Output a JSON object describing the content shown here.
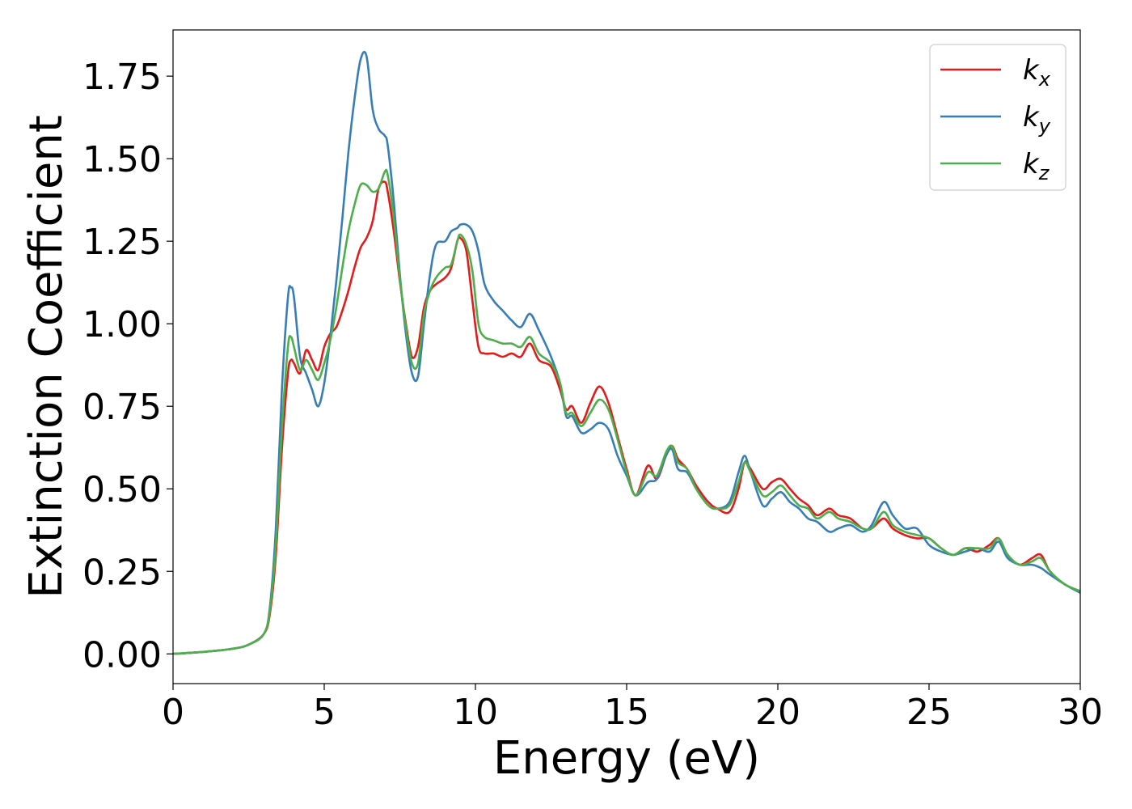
{
  "chart_data": {
    "type": "line",
    "xlabel": "Energy (eV)",
    "ylabel": "Extinction Coefficient",
    "xlim": [
      0,
      30
    ],
    "ylim": [
      -0.09,
      1.89
    ],
    "xticks": [
      0,
      5,
      10,
      15,
      20,
      25,
      30
    ],
    "yticks": [
      0.0,
      0.25,
      0.5,
      0.75,
      1.0,
      1.25,
      1.5,
      1.75
    ],
    "xtick_labels": [
      "0",
      "5",
      "10",
      "15",
      "20",
      "25",
      "30"
    ],
    "ytick_labels": [
      "0.00",
      "0.25",
      "0.50",
      "0.75",
      "1.00",
      "1.25",
      "1.50",
      "1.75"
    ],
    "grid": false,
    "legend_position": "top-right",
    "series": [
      {
        "name": "k",
        "subscript": "x",
        "color": "#e41a1c",
        "x": [
          0,
          1,
          2,
          2.5,
          3,
          3.2,
          3.4,
          3.6,
          3.8,
          3.9,
          4.0,
          4.2,
          4.4,
          4.6,
          4.8,
          5.0,
          5.2,
          5.4,
          5.6,
          5.8,
          6.0,
          6.2,
          6.4,
          6.6,
          6.8,
          7.0,
          7.1,
          7.3,
          7.5,
          7.7,
          7.9,
          8.1,
          8.3,
          8.5,
          8.7,
          9.0,
          9.2,
          9.4,
          9.5,
          9.7,
          9.9,
          10.1,
          10.3,
          10.6,
          10.9,
          11.2,
          11.5,
          11.8,
          12.1,
          12.5,
          12.8,
          13.0,
          13.2,
          13.5,
          13.8,
          14.1,
          14.4,
          14.7,
          15.0,
          15.3,
          15.7,
          16.0,
          16.3,
          16.5,
          16.7,
          17.0,
          17.3,
          17.7,
          18.0,
          18.4,
          18.7,
          18.9,
          19.1,
          19.5,
          19.8,
          20.1,
          20.4,
          20.7,
          21.0,
          21.3,
          21.7,
          22.0,
          22.4,
          22.8,
          23.1,
          23.5,
          23.8,
          24.2,
          24.6,
          25.0,
          25.4,
          25.8,
          26.2,
          26.6,
          27.0,
          27.3,
          27.6,
          28.0,
          28.4,
          28.7,
          29.0,
          29.5,
          30.0
        ],
        "y": [
          0,
          0.006,
          0.016,
          0.028,
          0.06,
          0.12,
          0.3,
          0.62,
          0.85,
          0.89,
          0.88,
          0.85,
          0.92,
          0.89,
          0.86,
          0.93,
          0.97,
          0.99,
          1.04,
          1.1,
          1.17,
          1.23,
          1.26,
          1.31,
          1.41,
          1.43,
          1.4,
          1.28,
          1.13,
          1.0,
          0.9,
          0.93,
          1.05,
          1.1,
          1.12,
          1.14,
          1.17,
          1.25,
          1.26,
          1.22,
          1.07,
          0.93,
          0.91,
          0.91,
          0.9,
          0.91,
          0.9,
          0.94,
          0.89,
          0.87,
          0.8,
          0.74,
          0.75,
          0.7,
          0.76,
          0.81,
          0.76,
          0.66,
          0.56,
          0.48,
          0.57,
          0.53,
          0.6,
          0.63,
          0.59,
          0.56,
          0.51,
          0.46,
          0.44,
          0.43,
          0.5,
          0.58,
          0.56,
          0.5,
          0.52,
          0.53,
          0.5,
          0.47,
          0.45,
          0.42,
          0.44,
          0.42,
          0.41,
          0.38,
          0.38,
          0.41,
          0.38,
          0.36,
          0.35,
          0.35,
          0.32,
          0.3,
          0.32,
          0.31,
          0.33,
          0.35,
          0.3,
          0.27,
          0.29,
          0.3,
          0.25,
          0.21,
          0.19
        ]
      },
      {
        "name": "k",
        "subscript": "y",
        "color": "#377eb8",
        "x": [
          0,
          1,
          2,
          2.5,
          3,
          3.2,
          3.4,
          3.6,
          3.8,
          3.9,
          4.0,
          4.2,
          4.4,
          4.6,
          4.8,
          5.0,
          5.2,
          5.4,
          5.6,
          5.8,
          6.0,
          6.2,
          6.4,
          6.6,
          6.8,
          7.0,
          7.1,
          7.3,
          7.5,
          7.7,
          7.9,
          8.1,
          8.3,
          8.5,
          8.7,
          9.0,
          9.2,
          9.4,
          9.5,
          9.7,
          9.9,
          10.1,
          10.3,
          10.6,
          10.9,
          11.2,
          11.5,
          11.8,
          12.1,
          12.5,
          12.8,
          13.0,
          13.2,
          13.5,
          13.8,
          14.1,
          14.4,
          14.7,
          15.0,
          15.3,
          15.7,
          16.0,
          16.3,
          16.5,
          16.7,
          17.0,
          17.3,
          17.7,
          18.0,
          18.4,
          18.7,
          18.9,
          19.1,
          19.5,
          19.8,
          20.1,
          20.4,
          20.7,
          21.0,
          21.3,
          21.7,
          22.0,
          22.4,
          22.8,
          23.1,
          23.5,
          23.8,
          24.2,
          24.6,
          25.0,
          25.4,
          25.8,
          26.2,
          26.6,
          27.0,
          27.3,
          27.6,
          28.0,
          28.4,
          28.7,
          29.0,
          29.5,
          30.0
        ],
        "y": [
          0,
          0.006,
          0.016,
          0.028,
          0.06,
          0.14,
          0.38,
          0.8,
          1.08,
          1.11,
          1.08,
          0.9,
          0.85,
          0.8,
          0.75,
          0.82,
          0.96,
          1.13,
          1.32,
          1.52,
          1.68,
          1.8,
          1.81,
          1.65,
          1.59,
          1.57,
          1.54,
          1.37,
          1.15,
          0.97,
          0.85,
          0.84,
          1.0,
          1.15,
          1.24,
          1.25,
          1.28,
          1.29,
          1.3,
          1.3,
          1.28,
          1.22,
          1.12,
          1.07,
          1.04,
          1.01,
          0.99,
          1.03,
          0.98,
          0.9,
          0.82,
          0.72,
          0.72,
          0.67,
          0.68,
          0.7,
          0.68,
          0.6,
          0.54,
          0.48,
          0.52,
          0.53,
          0.6,
          0.62,
          0.56,
          0.55,
          0.5,
          0.45,
          0.44,
          0.46,
          0.55,
          0.6,
          0.55,
          0.45,
          0.47,
          0.49,
          0.46,
          0.44,
          0.41,
          0.4,
          0.37,
          0.38,
          0.39,
          0.37,
          0.39,
          0.46,
          0.42,
          0.38,
          0.38,
          0.33,
          0.31,
          0.3,
          0.31,
          0.32,
          0.31,
          0.34,
          0.29,
          0.27,
          0.27,
          0.26,
          0.24,
          0.21,
          0.185
        ]
      },
      {
        "name": "k",
        "subscript": "z",
        "color": "#4daf4a",
        "x": [
          0,
          1,
          2,
          2.5,
          3,
          3.2,
          3.4,
          3.6,
          3.8,
          3.9,
          4.0,
          4.2,
          4.4,
          4.6,
          4.8,
          5.0,
          5.2,
          5.4,
          5.6,
          5.8,
          6.0,
          6.2,
          6.4,
          6.6,
          6.8,
          7.0,
          7.1,
          7.3,
          7.5,
          7.7,
          7.9,
          8.1,
          8.3,
          8.5,
          8.7,
          9.0,
          9.2,
          9.4,
          9.5,
          9.7,
          9.9,
          10.1,
          10.3,
          10.6,
          10.9,
          11.2,
          11.5,
          11.8,
          12.1,
          12.5,
          12.8,
          13.0,
          13.2,
          13.5,
          13.8,
          14.1,
          14.4,
          14.7,
          15.0,
          15.3,
          15.7,
          16.0,
          16.3,
          16.5,
          16.7,
          17.0,
          17.3,
          17.7,
          18.0,
          18.4,
          18.7,
          18.9,
          19.1,
          19.5,
          19.8,
          20.1,
          20.4,
          20.7,
          21.0,
          21.3,
          21.7,
          22.0,
          22.4,
          22.8,
          23.1,
          23.5,
          23.8,
          24.2,
          24.6,
          25.0,
          25.4,
          25.8,
          26.2,
          26.6,
          27.0,
          27.3,
          27.6,
          28.0,
          28.4,
          28.7,
          29.0,
          29.5,
          30.0
        ],
        "y": [
          0,
          0.006,
          0.016,
          0.028,
          0.06,
          0.13,
          0.33,
          0.68,
          0.93,
          0.96,
          0.93,
          0.86,
          0.89,
          0.86,
          0.83,
          0.88,
          0.95,
          1.05,
          1.17,
          1.28,
          1.36,
          1.42,
          1.42,
          1.4,
          1.41,
          1.46,
          1.45,
          1.32,
          1.14,
          0.99,
          0.88,
          0.88,
          1.03,
          1.1,
          1.14,
          1.17,
          1.18,
          1.25,
          1.27,
          1.24,
          1.16,
          1.0,
          0.96,
          0.95,
          0.94,
          0.94,
          0.93,
          0.96,
          0.91,
          0.88,
          0.82,
          0.73,
          0.73,
          0.69,
          0.73,
          0.77,
          0.74,
          0.65,
          0.55,
          0.48,
          0.55,
          0.54,
          0.61,
          0.63,
          0.58,
          0.56,
          0.5,
          0.45,
          0.44,
          0.45,
          0.52,
          0.58,
          0.55,
          0.48,
          0.49,
          0.51,
          0.48,
          0.45,
          0.44,
          0.41,
          0.43,
          0.41,
          0.4,
          0.38,
          0.38,
          0.43,
          0.39,
          0.37,
          0.36,
          0.35,
          0.32,
          0.3,
          0.32,
          0.32,
          0.32,
          0.35,
          0.3,
          0.27,
          0.28,
          0.29,
          0.25,
          0.21,
          0.19
        ]
      }
    ]
  }
}
